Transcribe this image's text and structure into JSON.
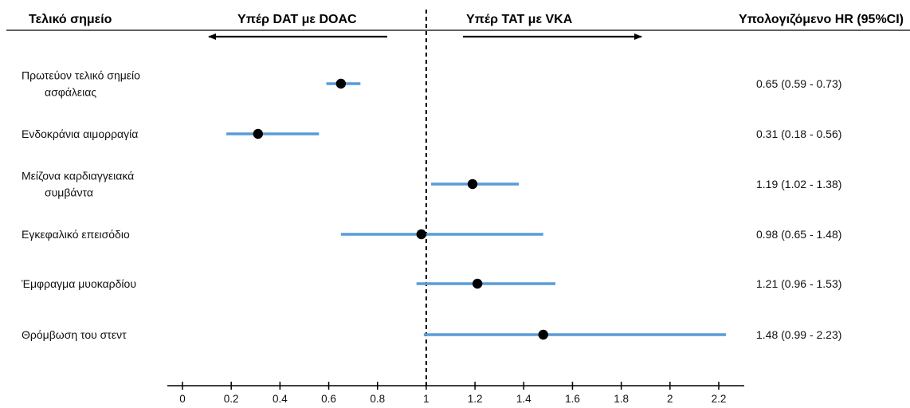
{
  "headers": {
    "endpoint": "Τελικό σημείο",
    "favors_left": "Υπέρ DAT με DOAC",
    "favors_right": "Υπέρ TAT με VKA",
    "hr_col": "Υπολογιζόμενο HR (95%CI)"
  },
  "chart_data": {
    "type": "forest",
    "title": "",
    "xlabel": "",
    "ylabel": "",
    "xlim": [
      0,
      2.2
    ],
    "x_ticks": [
      "0",
      "0.2",
      "0.4",
      "0.6",
      "0.8",
      "1",
      "1.2",
      "1.4",
      "1.6",
      "1.8",
      "2",
      "2.2"
    ],
    "reference_line": 1,
    "colors": {
      "ci": "#5b9bd5",
      "point": "#000000",
      "reference": "#000000"
    },
    "rows": [
      {
        "label": [
          "Πρωτεύον τελικό σημείο",
          "ασφάλειας"
        ],
        "hr": 0.65,
        "low": 0.59,
        "high": 0.73,
        "hr_text": "0.65 (0.59 - 0.73)"
      },
      {
        "label": [
          "Ενδοκράνια αιμορραγία"
        ],
        "hr": 0.31,
        "low": 0.18,
        "high": 0.56,
        "hr_text": "0.31 (0.18 - 0.56)"
      },
      {
        "label": [
          "Μείζονα καρδιαγγειακά",
          "συμβάντα"
        ],
        "hr": 1.19,
        "low": 1.02,
        "high": 1.38,
        "hr_text": "1.19 (1.02 - 1.38)"
      },
      {
        "label": [
          "Εγκεφαλικό επεισόδιο"
        ],
        "hr": 0.98,
        "low": 0.65,
        "high": 1.48,
        "hr_text": "0.98 (0.65 - 1.48)"
      },
      {
        "label": [
          "Έμφραγμα μυοκαρδίου"
        ],
        "hr": 1.21,
        "low": 0.96,
        "high": 1.53,
        "hr_text": "1.21 (0.96 - 1.53)"
      },
      {
        "label": [
          "Θρόμβωση του στεντ"
        ],
        "hr": 1.48,
        "low": 0.99,
        "high": 2.23,
        "hr_text": "1.48 (0.99 - 2.23)"
      }
    ]
  }
}
